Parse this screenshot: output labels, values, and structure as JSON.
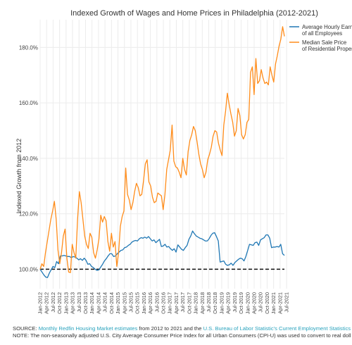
{
  "chart_data": {
    "type": "line",
    "title": "Indexed Growth of Wages and Home Prices in Philadelphia (2012-2021)",
    "ylabel": "Indexed Growth from 2012",
    "xlabel": "",
    "ylim": [
      93,
      190
    ],
    "yticks": [
      {
        "value": 100,
        "label": "100.0%"
      },
      {
        "value": 120,
        "label": "120.0%"
      },
      {
        "value": 140,
        "label": "140.0%"
      },
      {
        "value": 160,
        "label": "160.0%"
      },
      {
        "value": 180,
        "label": "180.0%"
      }
    ],
    "xrange": [
      1,
      114
    ],
    "xticks": [
      "Jan-2012",
      "Apr-2012",
      "Jul-2012",
      "Oct-2012",
      "Jan-2013",
      "Apr-2013",
      "Jul-2013",
      "Oct-2013",
      "Jan-2014",
      "Apr-2014",
      "Jul-2014",
      "Oct-2014",
      "Jan-2015",
      "Apr-2015",
      "Jul-2015",
      "Oct-2015",
      "Jan-2016",
      "Apr-2016",
      "Jul-2016",
      "Oct-2016",
      "Jan-2017",
      "Apr-2017",
      "Jul-2017",
      "Oct-2017",
      "Jan-2018",
      "Apr-2018",
      "Jul-2018",
      "Oct-2018",
      "Jan-2019",
      "Apr-2019",
      "Jul-2019",
      "Oct-2019",
      "Jan-2020",
      "Apr-2020",
      "Jul-2020",
      "Oct-2020",
      "Jan-2021",
      "Apr-2021",
      "Jul-2021"
    ],
    "reference_line": 100,
    "grid": true,
    "legend_position": "top-right",
    "series": [
      {
        "name": "Average Hourly Earnings of all Employees",
        "legend_lines": [
          "Average Hourly Earnings",
          "of all Employees"
        ],
        "color": "#1f77b4",
        "values": [
          100.0,
          99.0,
          98.0,
          97.2,
          97.0,
          98.6,
          99.8,
          101.0,
          100.6,
          102.8,
          102.0,
          104.8,
          104.8,
          105.0,
          104.8,
          104.6,
          104.6,
          104.2,
          104.6,
          104.4,
          104.0,
          103.4,
          103.8,
          103.2,
          104.0,
          103.2,
          101.8,
          102.0,
          101.0,
          100.6,
          100.0,
          99.6,
          99.8,
          100.8,
          101.8,
          103.0,
          103.8,
          104.8,
          105.6,
          105.6,
          104.6,
          104.8,
          105.6,
          106.2,
          106.8,
          107.0,
          107.8,
          108.0,
          108.6,
          109.0,
          109.8,
          110.2,
          110.4,
          110.2,
          111.0,
          111.4,
          111.2,
          111.6,
          111.2,
          111.8,
          111.0,
          110.2,
          110.6,
          109.6,
          110.2,
          110.8,
          108.2,
          108.4,
          109.0,
          108.0,
          108.2,
          107.4,
          106.8,
          107.4,
          106.2,
          108.8,
          108.0,
          107.2,
          106.8,
          107.8,
          108.6,
          110.8,
          112.0,
          113.8,
          112.8,
          112.0,
          111.6,
          111.2,
          111.0,
          110.6,
          110.2,
          110.2,
          111.0,
          112.2,
          113.0,
          113.2,
          111.8,
          110.2,
          102.6,
          102.8,
          103.0,
          101.8,
          101.4,
          101.6,
          102.2,
          101.4,
          102.4,
          103.0,
          103.6,
          104.0,
          103.8,
          103.0,
          104.6,
          106.8,
          109.0,
          108.8,
          108.6,
          109.6,
          109.8,
          108.6,
          110.6,
          111.0,
          111.4,
          112.4,
          112.4,
          111.2,
          107.8,
          108.0,
          108.0,
          108.2,
          108.0,
          109.0,
          105.6,
          105.0
        ]
      },
      {
        "name": "Median Sale Price of Residential Properties",
        "legend_lines": [
          "Median Sale Price",
          "of Residential Properties"
        ],
        "color": "#ff8c1a",
        "values": [
          100.0,
          102.0,
          101.0,
          106.0,
          110.0,
          114.0,
          118.0,
          121.0,
          124.5,
          118.0,
          107.0,
          102.0,
          106.0,
          112.0,
          114.5,
          104.0,
          99.0,
          98.8,
          109.0,
          106.0,
          104.0,
          118.0,
          128.0,
          124.0,
          118.0,
          112.0,
          109.0,
          107.5,
          113.0,
          111.5,
          106.0,
          104.0,
          107.0,
          111.0,
          119.5,
          117.0,
          119.0,
          117.5,
          110.0,
          106.5,
          113.0,
          108.0,
          110.0,
          101.0,
          106.0,
          115.5,
          119.0,
          121.0,
          136.5,
          127.0,
          125.0,
          121.5,
          124.0,
          128.0,
          131.0,
          129.5,
          126.5,
          127.0,
          132.0,
          138.0,
          139.5,
          131.5,
          130.0,
          126.0,
          124.0,
          124.5,
          127.5,
          127.0,
          126.5,
          121.5,
          127.0,
          136.0,
          139.5,
          143.0,
          152.0,
          139.0,
          137.0,
          136.5,
          135.0,
          133.0,
          140.0,
          136.0,
          134.0,
          142.5,
          146.5,
          148.5,
          151.5,
          150.0,
          146.0,
          141.5,
          138.0,
          136.0,
          133.0,
          135.0,
          139.5,
          141.5,
          144.0,
          148.0,
          150.0,
          149.5,
          145.5,
          143.0,
          141.0,
          152.0,
          157.0,
          163.5,
          159.5,
          156.0,
          153.0,
          148.0,
          150.0,
          158.0,
          155.5,
          148.5,
          147.0,
          148.5,
          153.0,
          154.0,
          171.0,
          173.0,
          163.0,
          176.0,
          167.0,
          168.0,
          172.0,
          169.0,
          167.0,
          167.5,
          166.5,
          173.0,
          170.0,
          167.5,
          174.0,
          177.0,
          180.5,
          183.0,
          187.5,
          184.0
        ]
      }
    ]
  },
  "footer": {
    "line1_prefix": "SOURCE: ",
    "line1_link1": "Monthly Redfin Housing Market estimates",
    "line1_middle": " from 2012 to 2021 and the ",
    "line1_link2": "U.S. Bureau of Labor Statistic's Current Employment Statistics",
    "line1_suffix": ".",
    "line2": "NOTE: The non-seasonally adjusted U.S. City Average Consumer Price Index for all Urban Consumers (CPI-U) was used to convert to real dollars."
  }
}
